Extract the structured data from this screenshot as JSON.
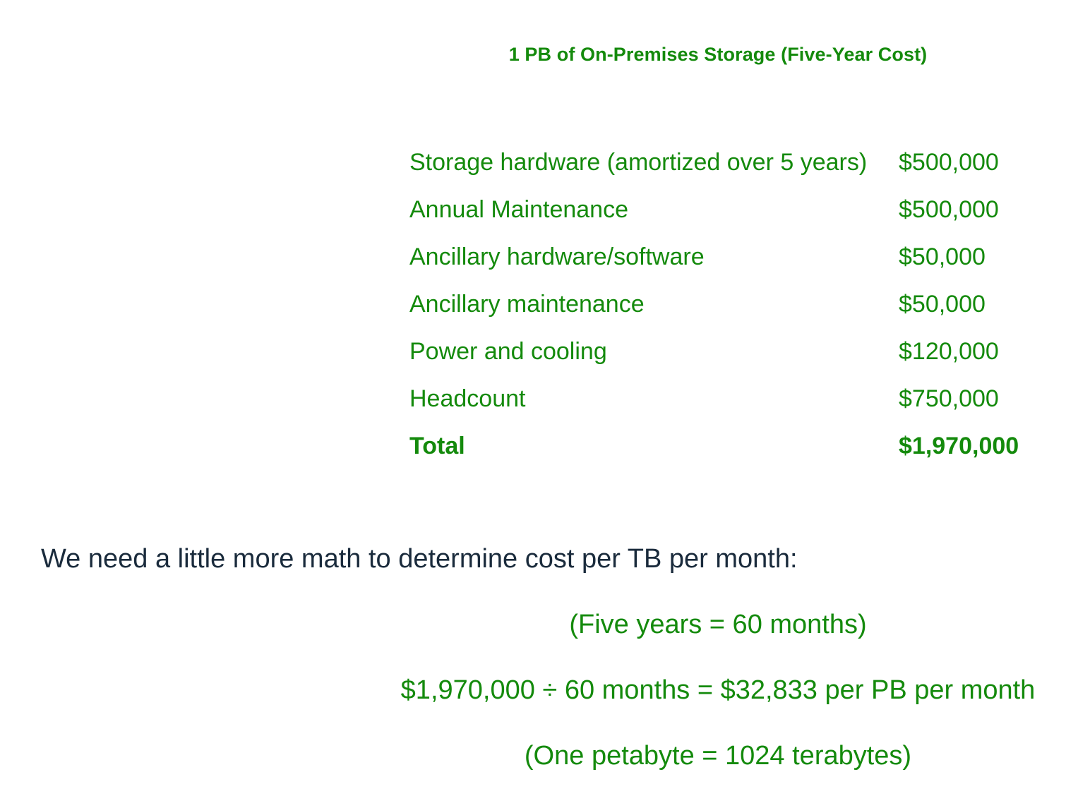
{
  "title": "1 PB of On-Premises Storage (Five-Year Cost)",
  "cost_rows": [
    {
      "label": "Storage hardware (amortized over 5 years)",
      "value": "$500,000"
    },
    {
      "label": "Annual Maintenance",
      "value": "$500,000"
    },
    {
      "label": "Ancillary hardware/software",
      "value": "$50,000"
    },
    {
      "label": "Ancillary maintenance",
      "value": "$50,000"
    },
    {
      "label": "Power and cooling",
      "value": "$120,000"
    },
    {
      "label": "Headcount",
      "value": "$750,000"
    }
  ],
  "total": {
    "label": "Total",
    "value": "$1,970,000"
  },
  "intro_text": "We need a little more math to determine cost per TB per month:",
  "math_lines": [
    "(Five years = 60 months)",
    "$1,970,000 ÷ 60 months = $32,833 per PB per month",
    "(One petabyte = 1024 terabytes)"
  ],
  "colors": {
    "accent_green": "#148a0c",
    "body_text": "#1a2b3c",
    "background": "#ffffff"
  }
}
